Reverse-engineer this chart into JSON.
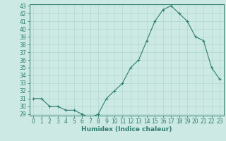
{
  "x": [
    0,
    1,
    2,
    3,
    4,
    5,
    6,
    7,
    8,
    9,
    10,
    11,
    12,
    13,
    14,
    15,
    16,
    17,
    18,
    19,
    20,
    21,
    22,
    23
  ],
  "y": [
    31,
    31,
    30,
    30,
    29.5,
    29.5,
    29,
    28.5,
    29,
    31,
    32,
    33,
    35,
    36,
    38.5,
    41,
    42.5,
    43,
    42,
    41,
    39,
    38.5,
    35,
    33.5
  ],
  "line_color": "#2e7d6e",
  "marker": "+",
  "bg_color": "#cce9e4",
  "grid_color": "#b0d8d0",
  "xlabel": "Humidex (Indice chaleur)",
  "ylim": [
    29,
    43
  ],
  "xlim": [
    -0.5,
    23.5
  ],
  "yticks": [
    29,
    30,
    31,
    32,
    33,
    34,
    35,
    36,
    37,
    38,
    39,
    40,
    41,
    42,
    43
  ],
  "xticks": [
    0,
    1,
    2,
    3,
    4,
    5,
    6,
    7,
    8,
    9,
    10,
    11,
    12,
    13,
    14,
    15,
    16,
    17,
    18,
    19,
    20,
    21,
    22,
    23
  ],
  "tick_label_fontsize": 5.5,
  "xlabel_fontsize": 6.5,
  "axis_color": "#2e7d6e",
  "spine_color": "#2e7d6e",
  "line_width": 0.8,
  "marker_size": 3
}
